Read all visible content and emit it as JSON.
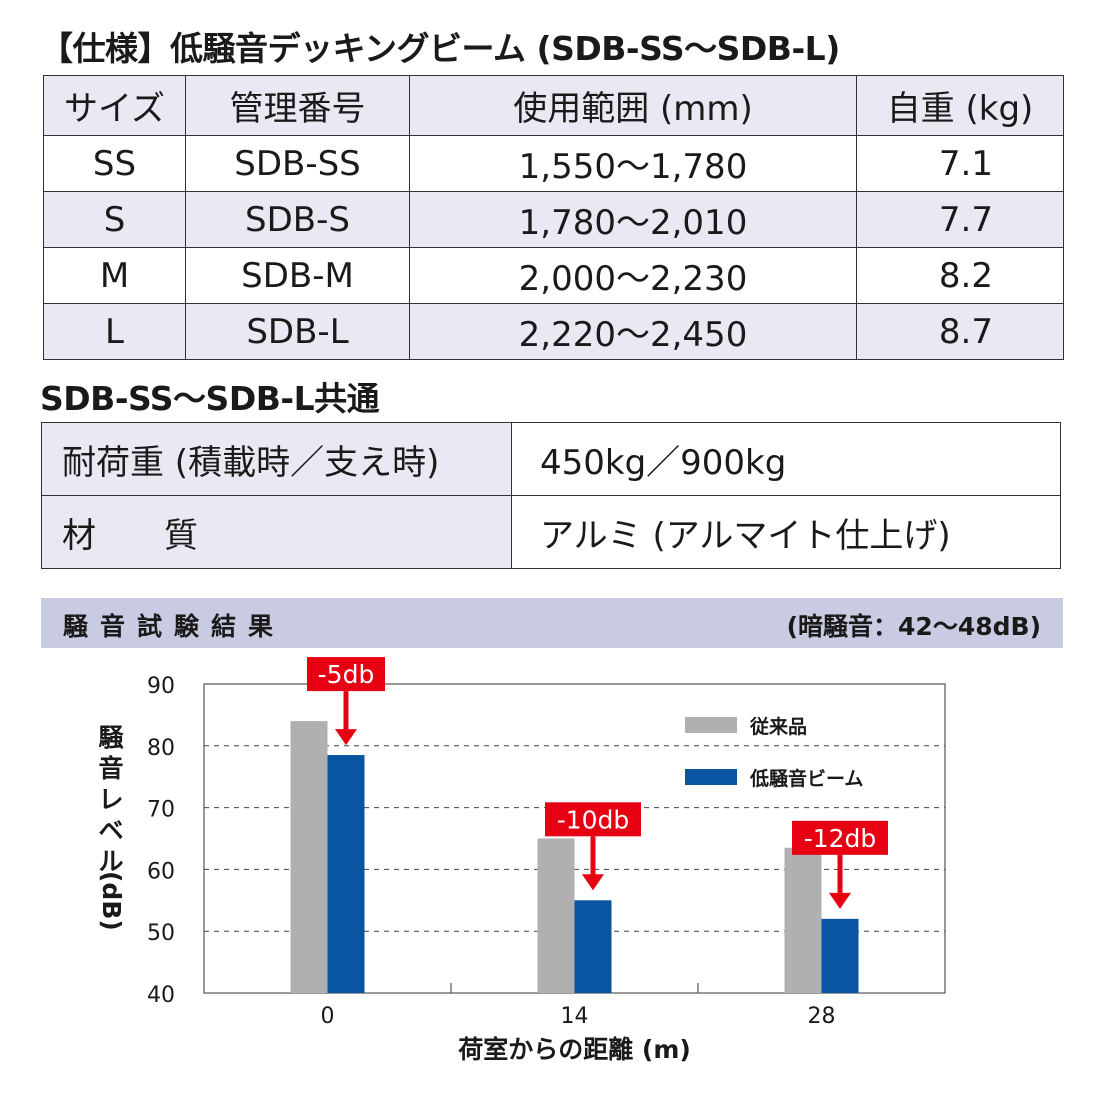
{
  "spec": {
    "title": "【仕様】低騒音デッキングビーム (SDB-SS〜SDB-L)",
    "headers": [
      "サイズ",
      "管理番号",
      "使用範囲 (mm)",
      "自重 (kg)"
    ],
    "rows": [
      {
        "size": "SS",
        "code": "SDB-SS",
        "range": "1,550〜1,780",
        "weight": "7.1"
      },
      {
        "size": "S",
        "code": "SDB-S",
        "range": "1,780〜2,010",
        "weight": "7.7"
      },
      {
        "size": "M",
        "code": "SDB-M",
        "range": "2,000〜2,230",
        "weight": "8.2"
      },
      {
        "size": "L",
        "code": "SDB-L",
        "range": "2,220〜2,450",
        "weight": "8.7"
      }
    ]
  },
  "common": {
    "title": "SDB-SS〜SDB-L共通",
    "rows": [
      {
        "label": "耐荷重 (積載時／支え時)",
        "value": "450kg／900kg"
      },
      {
        "label": "材　　質",
        "value": "アルミ (アルマイト仕上げ)"
      }
    ]
  },
  "results": {
    "title": "騒音試験結果",
    "note": "(暗騒音：42〜48dB)"
  },
  "chart_data": {
    "type": "bar",
    "categories": [
      "0",
      "14",
      "28"
    ],
    "series": [
      {
        "name": "従来品",
        "values": [
          84,
          65,
          63.5
        ],
        "color": "#b0b0b0"
      },
      {
        "name": "低騒音ビーム",
        "values": [
          78.5,
          55,
          52
        ],
        "color": "#0a55a2"
      }
    ],
    "annotations": [
      "-5db",
      "-10db",
      "-12db"
    ],
    "annotation_color": "#e60012",
    "xlabel": "荷室からの距離 (m)",
    "ylabel": "騒音レベル (dB)",
    "ylabel_main": "騒音レベル",
    "ylabel_unit": "(dB)",
    "ylim": [
      40,
      90
    ],
    "yticks": [
      "90",
      "80",
      "70",
      "60",
      "50",
      "40"
    ],
    "grid": "dashed horizontal",
    "legend_position": "top-right"
  }
}
